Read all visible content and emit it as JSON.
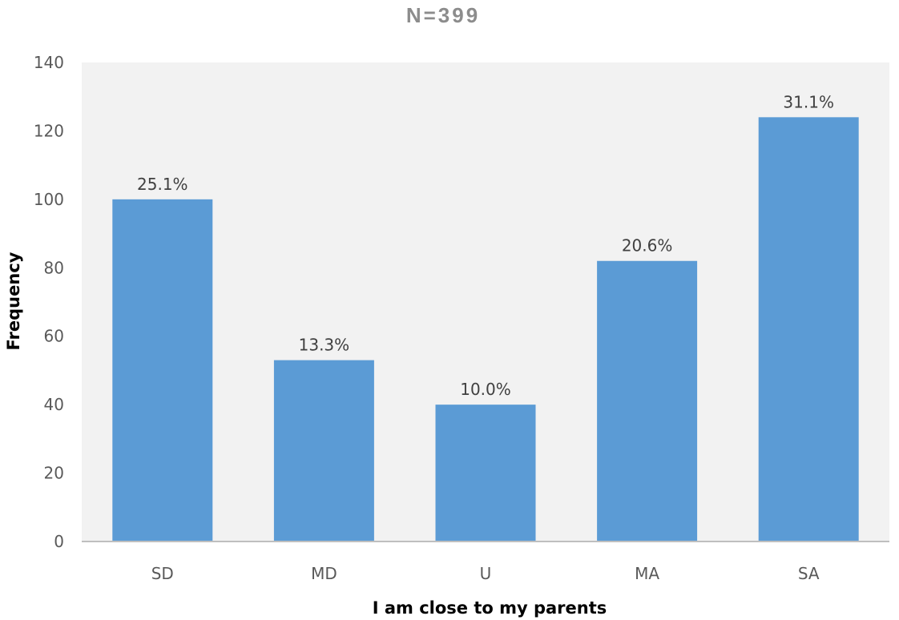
{
  "chart_data": {
    "type": "bar",
    "title": "N=399",
    "xlabel": "I am close to my parents",
    "ylabel": "Frequency",
    "categories": [
      "SD",
      "MD",
      "U",
      "MA",
      "SA"
    ],
    "values": [
      100,
      53,
      40,
      82,
      124
    ],
    "data_labels": [
      "25.1%",
      "13.3%",
      "10.0%",
      "20.6%",
      "31.1%"
    ],
    "ylim": [
      0,
      140
    ],
    "yticks": [
      0,
      20,
      40,
      60,
      80,
      100,
      120,
      140
    ],
    "grid": false,
    "legend": "none",
    "colors": {
      "bar": "#5b9bd5",
      "plot_background": "#f2f2f2",
      "axis_line": "#bfbfbf"
    }
  }
}
